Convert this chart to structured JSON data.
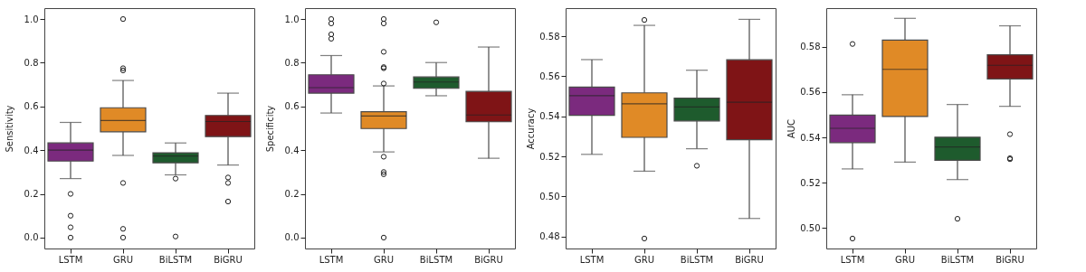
{
  "chart_data": [
    {
      "type": "box",
      "ylabel": "Sensitivity",
      "categories": [
        "LSTM",
        "GRU",
        "BiLSTM",
        "BiGRU"
      ],
      "colors": [
        "#7b2a7e",
        "#e08a26",
        "#1e5b2d",
        "#7f1416"
      ],
      "ylim": [
        -0.05,
        1.05
      ],
      "yticks": [
        {
          "value": 0,
          "label": "0.0"
        },
        0.2,
        0.4,
        0.6,
        0.8,
        {
          "value": 1,
          "label": "1.0"
        }
      ],
      "grid": false,
      "boxes": [
        {
          "low": 0.27,
          "q1": 0.35,
          "median": 0.4,
          "q3": 0.433,
          "high": 0.527,
          "outliers": [
            0.2,
            0.1,
            0.047,
            0.0
          ]
        },
        {
          "low": 0.376,
          "q1": 0.484,
          "median": 0.536,
          "q3": 0.594,
          "high": 0.719,
          "outliers": [
            0.25,
            0.04,
            0.0,
            0.765,
            0.775,
            1.0
          ]
        },
        {
          "low": 0.287,
          "q1": 0.342,
          "median": 0.373,
          "q3": 0.388,
          "high": 0.433,
          "outliers": [
            0.27,
            0.005
          ]
        },
        {
          "low": 0.332,
          "q1": 0.462,
          "median": 0.531,
          "q3": 0.559,
          "high": 0.661,
          "outliers": [
            0.275,
            0.25,
            0.165
          ]
        }
      ]
    },
    {
      "type": "box",
      "ylabel": "Specificity",
      "categories": [
        "LSTM",
        "GRU",
        "BiLSTM",
        "BiGRU"
      ],
      "colors": [
        "#7b2a7e",
        "#e08a26",
        "#1e5b2d",
        "#7f1416"
      ],
      "ylim": [
        -0.05,
        1.05
      ],
      "yticks": [
        {
          "value": 0,
          "label": "0.0"
        },
        0.2,
        0.4,
        0.6,
        0.8,
        {
          "value": 1,
          "label": "1.0"
        }
      ],
      "grid": false,
      "boxes": [
        {
          "low": 0.57,
          "q1": 0.661,
          "median": 0.686,
          "q3": 0.745,
          "high": 0.833,
          "outliers": [
            1.0,
            0.98,
            0.93,
            0.91
          ]
        },
        {
          "low": 0.392,
          "q1": 0.499,
          "median": 0.556,
          "q3": 0.576,
          "high": 0.694,
          "outliers": [
            0.705,
            0.775,
            0.78,
            0.85,
            0.98,
            1.0,
            0.37,
            0.3,
            0.29,
            0.0
          ]
        },
        {
          "low": 0.649,
          "q1": 0.683,
          "median": 0.712,
          "q3": 0.735,
          "high": 0.801,
          "outliers": [
            0.985
          ]
        },
        {
          "low": 0.363,
          "q1": 0.53,
          "median": 0.561,
          "q3": 0.669,
          "high": 0.872
        }
      ]
    },
    {
      "type": "box",
      "ylabel": "Accuracy",
      "categories": [
        "LSTM",
        "GRU",
        "BiLSTM",
        "BiGRU"
      ],
      "colors": [
        "#7b2a7e",
        "#e08a26",
        "#1e5b2d",
        "#7f1416"
      ],
      "ylim": [
        0.474,
        0.594
      ],
      "yticks": [
        0.48,
        {
          "value": 0.5,
          "label": "0.50"
        },
        0.52,
        0.54,
        0.56,
        0.58
      ],
      "grid": false,
      "boxes": [
        {
          "low": 0.521,
          "q1": 0.5405,
          "median": 0.5503,
          "q3": 0.5546,
          "high": 0.5683
        },
        {
          "low": 0.5126,
          "q1": 0.5295,
          "median": 0.5462,
          "q3": 0.5517,
          "high": 0.5854,
          "outliers": [
            0.5881,
            0.479
          ]
        },
        {
          "low": 0.5238,
          "q1": 0.5377,
          "median": 0.5447,
          "q3": 0.5491,
          "high": 0.563,
          "outliers": [
            0.5153
          ]
        },
        {
          "low": 0.489,
          "q1": 0.5283,
          "median": 0.547,
          "q3": 0.5682,
          "high": 0.5884
        }
      ]
    },
    {
      "type": "box",
      "ylabel": "AUC",
      "categories": [
        "LSTM",
        "GRU",
        "BiLSTM",
        "BiGRU"
      ],
      "colors": [
        "#7b2a7e",
        "#e08a26",
        "#1e5b2d",
        "#7f1416"
      ],
      "ylim": [
        0.491,
        0.597
      ],
      "yticks": [
        {
          "value": 0.5,
          "label": "0.50"
        },
        0.52,
        0.54,
        0.56,
        0.58
      ],
      "grid": false,
      "boxes": [
        {
          "low": 0.5261,
          "q1": 0.5377,
          "median": 0.544,
          "q3": 0.5498,
          "high": 0.5588,
          "outliers": [
            0.5812,
            0.4954
          ]
        },
        {
          "low": 0.5291,
          "q1": 0.5492,
          "median": 0.57,
          "q3": 0.5829,
          "high": 0.5925
        },
        {
          "low": 0.5214,
          "q1": 0.5299,
          "median": 0.5358,
          "q3": 0.5401,
          "high": 0.5545,
          "outliers": [
            0.5041
          ]
        },
        {
          "low": 0.5537,
          "q1": 0.5658,
          "median": 0.5718,
          "q3": 0.5764,
          "high": 0.5892,
          "outliers": [
            0.5414,
            0.5308,
            0.5304
          ]
        }
      ]
    }
  ]
}
